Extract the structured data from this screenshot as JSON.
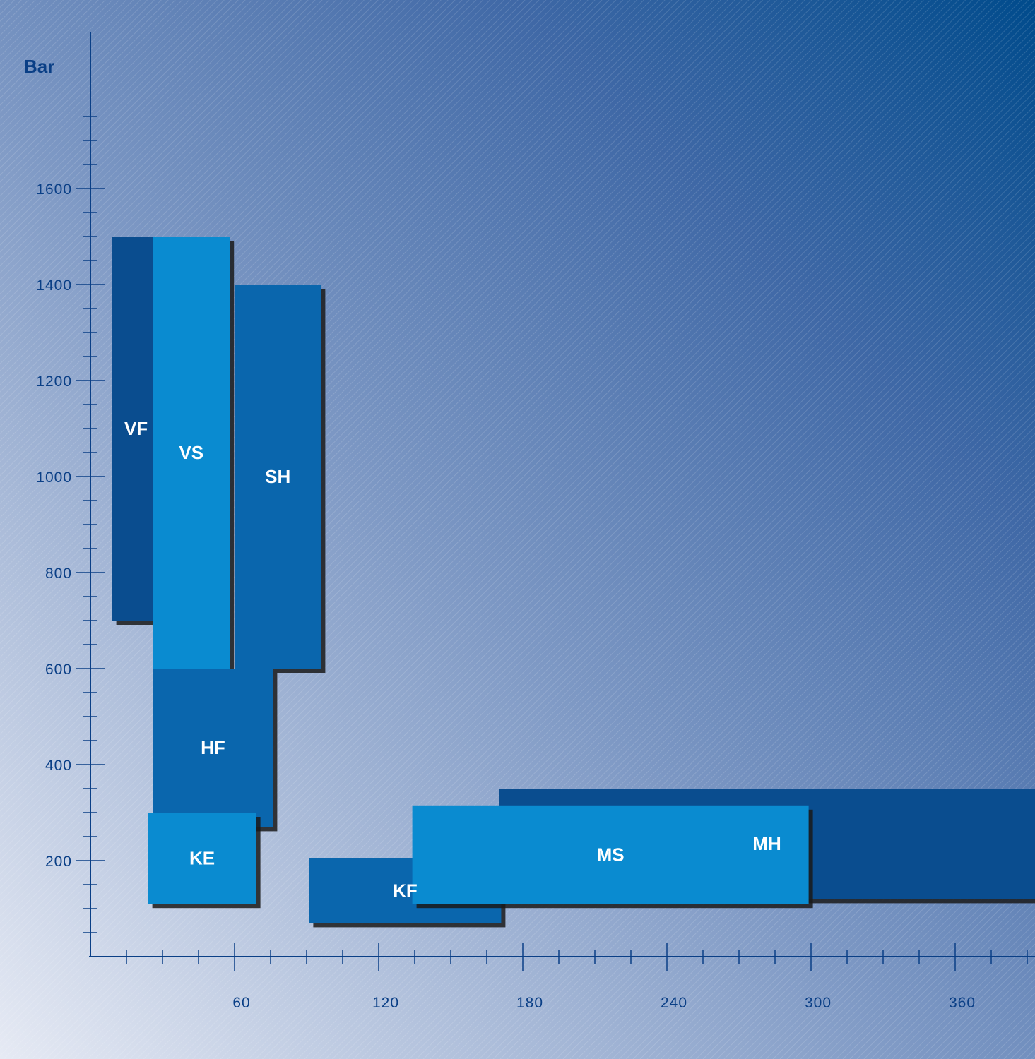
{
  "chart_data": {
    "type": "bar",
    "ylabel": "Bar",
    "xlim": [
      0,
      400
    ],
    "ylim": [
      0,
      1850
    ],
    "x_ticks": [
      60,
      120,
      180,
      240,
      300,
      360
    ],
    "y_ticks": [
      200,
      400,
      600,
      800,
      1000,
      1200,
      1400,
      1600
    ],
    "grid": false,
    "series": [
      {
        "name": "MH",
        "x": [
          170,
          400
        ],
        "y": [
          120,
          350
        ],
        "color": "#0a4d8f",
        "layer": "back"
      },
      {
        "name": "VF",
        "x": [
          9,
          29
        ],
        "y": [
          700,
          1500
        ],
        "color": "#0a4d8f"
      },
      {
        "name": "VS",
        "x": [
          26,
          58
        ],
        "y": [
          600,
          1500
        ],
        "color": "#0a8bd0"
      },
      {
        "name": "SH",
        "x": [
          60,
          96
        ],
        "y": [
          600,
          1400
        ],
        "color": "#0a66ad",
        "stepped": true
      },
      {
        "name": "HF",
        "x": [
          26,
          76
        ],
        "y": [
          270,
          600
        ],
        "color": "#0a66ad"
      },
      {
        "name": "KE",
        "x": [
          24,
          69
        ],
        "y": [
          110,
          300
        ],
        "color": "#0a8bd0"
      },
      {
        "name": "KF",
        "x": [
          91,
          171
        ],
        "y": [
          70,
          205
        ],
        "color": "#0a66ad"
      },
      {
        "name": "MS",
        "x": [
          134,
          299
        ],
        "y": [
          110,
          315
        ],
        "color": "#0a8bd0"
      }
    ]
  }
}
